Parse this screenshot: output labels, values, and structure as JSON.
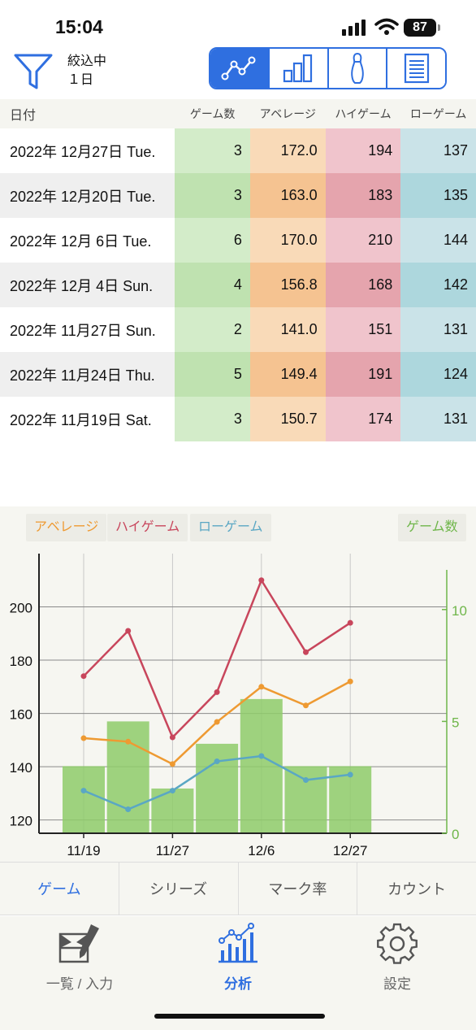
{
  "status": {
    "time": "15:04",
    "battery": "87"
  },
  "filter": {
    "line1": "絞込中",
    "line2": "１日"
  },
  "view_modes": [
    "line-chart-icon",
    "bar-chart-icon",
    "bowling-pin-icon",
    "list-icon"
  ],
  "table": {
    "headers": {
      "date": "日付",
      "games": "ゲーム数",
      "average": "アベレージ",
      "high": "ハイゲーム",
      "low": "ローゲーム"
    },
    "rows": [
      {
        "date": "2022年 12月27日 Tue.",
        "games": "3",
        "average": "172.0",
        "high": "194",
        "low": "137"
      },
      {
        "date": "2022年 12月20日 Tue.",
        "games": "3",
        "average": "163.0",
        "high": "183",
        "low": "135"
      },
      {
        "date": "2022年 12月 6日 Tue.",
        "games": "6",
        "average": "170.0",
        "high": "210",
        "low": "144"
      },
      {
        "date": "2022年 12月 4日 Sun.",
        "games": "4",
        "average": "156.8",
        "high": "168",
        "low": "142"
      },
      {
        "date": "2022年 11月27日 Sun.",
        "games": "2",
        "average": "141.0",
        "high": "151",
        "low": "131"
      },
      {
        "date": "2022年 11月24日 Thu.",
        "games": "5",
        "average": "149.4",
        "high": "191",
        "low": "124"
      },
      {
        "date": "2022年 11月19日 Sat.",
        "games": "3",
        "average": "150.7",
        "high": "174",
        "low": "131"
      }
    ]
  },
  "chart_data": {
    "type": "line",
    "legend": {
      "average": "アベレージ",
      "high": "ハイゲーム",
      "low": "ローゲーム",
      "games": "ゲーム数"
    },
    "x_ticks": [
      "11/19",
      "11/27",
      "12/6",
      "12/27"
    ],
    "x_tick_index": [
      0,
      2,
      4,
      6
    ],
    "left_ticks": [
      "120",
      "140",
      "160",
      "180",
      "200"
    ],
    "right_ticks": [
      "0",
      "5",
      "10"
    ],
    "ylim": [
      115,
      220
    ],
    "y2lim": [
      0,
      12.5
    ],
    "series": [
      {
        "name": "ハイゲーム",
        "color": "#c8465c",
        "values": [
          174,
          191,
          151,
          168,
          210,
          183,
          194
        ]
      },
      {
        "name": "アベレージ",
        "color": "#ee9a32",
        "values": [
          150.7,
          149.4,
          141.0,
          156.8,
          170.0,
          163.0,
          172.0
        ]
      },
      {
        "name": "ローゲーム",
        "color": "#5aa7c4",
        "values": [
          131,
          124,
          131,
          142,
          144,
          135,
          137
        ]
      }
    ],
    "bars": {
      "name": "ゲーム数",
      "color": "#8ecb6a",
      "values": [
        3,
        5,
        2,
        4,
        6,
        3,
        3
      ]
    }
  },
  "tabs": [
    "ゲーム",
    "シリーズ",
    "マーク率",
    "カウント"
  ],
  "nav": {
    "input": "一覧 / 入力",
    "analysis": "分析",
    "settings": "設定"
  }
}
